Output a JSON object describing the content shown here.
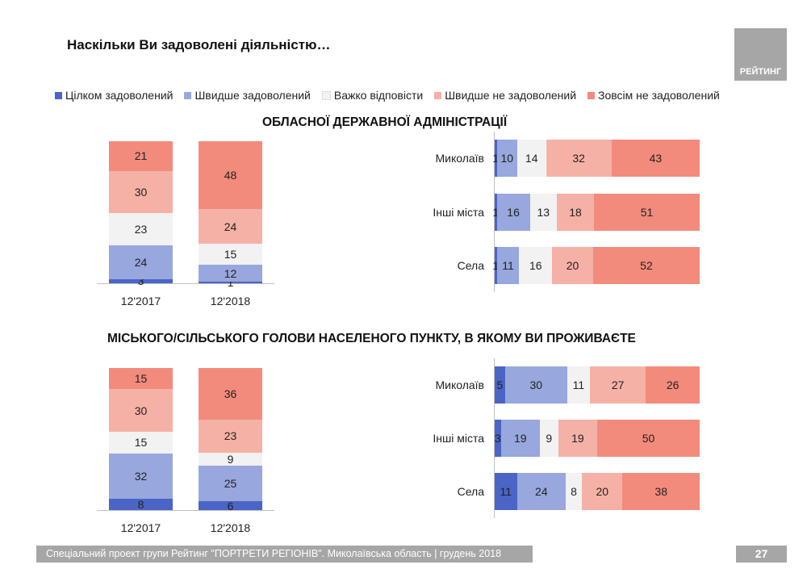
{
  "title": "Наскільки Ви задоволені діяльністю…",
  "logo_text": "РЕЙТИНГ",
  "legend": [
    {
      "label": "Цілком задоволений",
      "color": "#4a65c6"
    },
    {
      "label": "Швидше задоволений",
      "color": "#98a7dd"
    },
    {
      "label": "Важко відповісти",
      "color": "#f2f2f2"
    },
    {
      "label": "Швидше не задоволений",
      "color": "#f6b1a7"
    },
    {
      "label": "Зовсім не задоволений",
      "color": "#f28b7c"
    }
  ],
  "chart_data": [
    {
      "type": "bar",
      "stacked": true,
      "orientation": "vertical",
      "title": "ОБЛАСНОЇ ДЕРЖАВНОЇ АДМІНІСТРАЦІЇ",
      "categories": [
        "12'2017",
        "12'2018"
      ],
      "series": [
        {
          "name": "Цілком задоволений",
          "values": [
            3,
            1
          ]
        },
        {
          "name": "Швидше задоволений",
          "values": [
            24,
            12
          ]
        },
        {
          "name": "Важко відповісти",
          "values": [
            23,
            15
          ]
        },
        {
          "name": "Швидше не задоволений",
          "values": [
            30,
            24
          ]
        },
        {
          "name": "Зовсім не задоволений",
          "values": [
            21,
            48
          ]
        }
      ]
    },
    {
      "type": "bar",
      "stacked": true,
      "orientation": "horizontal",
      "categories": [
        "Миколаїв",
        "Інші міста",
        "Села"
      ],
      "series": [
        {
          "name": "Цілком задоволений",
          "values": [
            1,
            1,
            1
          ]
        },
        {
          "name": "Швидше задоволений",
          "values": [
            10,
            16,
            11
          ]
        },
        {
          "name": "Важко відповісти",
          "values": [
            14,
            13,
            16
          ]
        },
        {
          "name": "Швидше не задоволений",
          "values": [
            32,
            18,
            20
          ]
        },
        {
          "name": "Зовсім не задоволений",
          "values": [
            43,
            51,
            52
          ]
        }
      ]
    },
    {
      "type": "bar",
      "stacked": true,
      "orientation": "vertical",
      "title": "МІСЬКОГО/СІЛЬСЬКОГО ГОЛОВИ НАСЕЛЕНОГО ПУНКТУ, В ЯКОМУ ВИ ПРОЖИВАЄТЕ",
      "categories": [
        "12'2017",
        "12'2018"
      ],
      "series": [
        {
          "name": "Цілком задоволений",
          "values": [
            8,
            6
          ]
        },
        {
          "name": "Швидше задоволений",
          "values": [
            32,
            25
          ]
        },
        {
          "name": "Важко відповісти",
          "values": [
            15,
            9
          ]
        },
        {
          "name": "Швидше не задоволений",
          "values": [
            30,
            23
          ]
        },
        {
          "name": "Зовсім не задоволений",
          "values": [
            15,
            36
          ]
        }
      ]
    },
    {
      "type": "bar",
      "stacked": true,
      "orientation": "horizontal",
      "categories": [
        "Миколаїв",
        "Інші міста",
        "Села"
      ],
      "series": [
        {
          "name": "Цілком задоволений",
          "values": [
            5,
            3,
            11
          ]
        },
        {
          "name": "Швидше задоволений",
          "values": [
            30,
            19,
            24
          ]
        },
        {
          "name": "Важко відповісти",
          "values": [
            11,
            9,
            8
          ]
        },
        {
          "name": "Швидше не задоволений",
          "values": [
            27,
            19,
            20
          ]
        },
        {
          "name": "Зовсім не задоволений",
          "values": [
            26,
            50,
            38
          ]
        }
      ]
    }
  ],
  "footer": "Спеціальний проект групи Рейтинг \"ПОРТРЕТИ РЕГІОНІВ\". Миколаївська область | грудень 2018",
  "page_number": "27"
}
